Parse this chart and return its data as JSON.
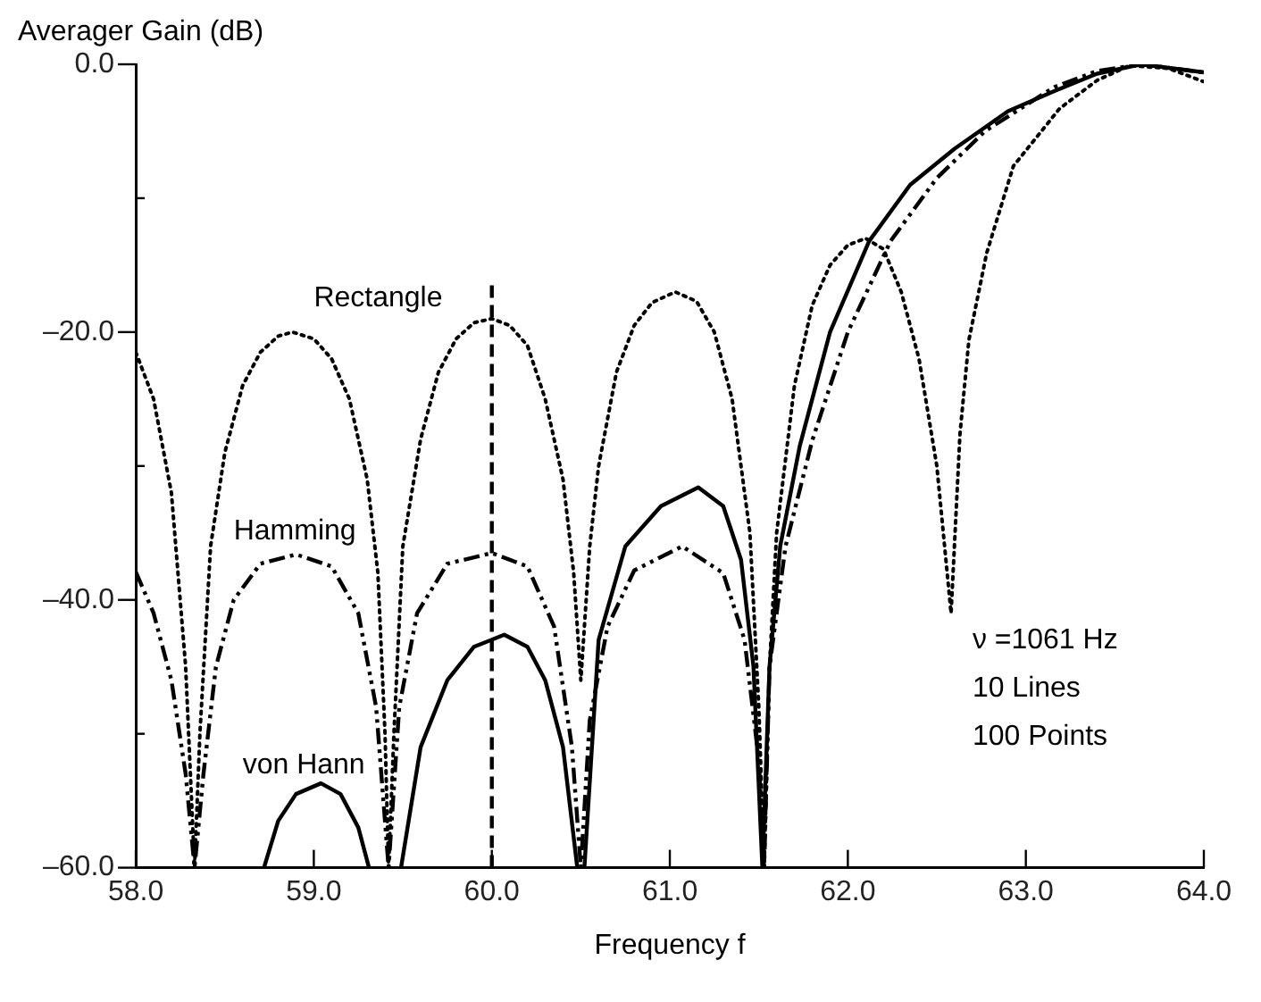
{
  "chart_data": {
    "type": "line",
    "xlabel": "Frequency f",
    "ylabel": "Averager Gain (dB)",
    "xlim": [
      58,
      64
    ],
    "ylim": [
      -60,
      0
    ],
    "xticks": [
      {
        "value": 58,
        "label": "58.0"
      },
      {
        "value": 59,
        "label": "59.0"
      },
      {
        "value": 60,
        "label": "60.0"
      },
      {
        "value": 61,
        "label": "61.0"
      },
      {
        "value": 62,
        "label": "62.0"
      },
      {
        "value": 63,
        "label": "63.0"
      },
      {
        "value": 64,
        "label": "64.0"
      }
    ],
    "yticks": [
      {
        "value": -60,
        "label": "–60.0"
      },
      {
        "value": -50,
        "label": null
      },
      {
        "value": -40,
        "label": "–40.0"
      },
      {
        "value": -30,
        "label": null
      },
      {
        "value": -20,
        "label": "–20.0"
      },
      {
        "value": -10,
        "label": null
      },
      {
        "value": 0,
        "label": "0.0"
      }
    ],
    "grid": false,
    "legend": false,
    "marker": "none",
    "series": [
      {
        "name": "Rectangle",
        "color": "#000000",
        "line_style": "dotted",
        "x": [
          58.0,
          58.1,
          58.2,
          58.28,
          58.33,
          58.36,
          58.42,
          58.5,
          58.6,
          58.7,
          58.8,
          58.88,
          59.0,
          59.1,
          59.2,
          59.3,
          59.36,
          59.4,
          59.42,
          59.45,
          59.5,
          59.6,
          59.7,
          59.8,
          59.9,
          60.0,
          60.1,
          60.2,
          60.3,
          60.4,
          60.46,
          60.5,
          60.55,
          60.6,
          60.7,
          60.8,
          60.9,
          61.03,
          61.15,
          61.25,
          61.35,
          61.45,
          61.5,
          61.53,
          61.56,
          61.6,
          61.7,
          61.8,
          61.9,
          62.0,
          62.1,
          62.2,
          62.3,
          62.4,
          62.5,
          62.58,
          62.63,
          62.68,
          62.78,
          62.93,
          63.19,
          63.4,
          63.58,
          63.8,
          64.0
        ],
        "values": [
          -21.5,
          -25,
          -32,
          -45,
          -60,
          -50,
          -36,
          -29,
          -24,
          -21.5,
          -20.3,
          -20,
          -20.5,
          -22,
          -25,
          -31,
          -38,
          -50,
          -60,
          -50,
          -36,
          -28,
          -23,
          -20.5,
          -19.3,
          -19,
          -19.5,
          -21,
          -25,
          -31,
          -38,
          -46,
          -36,
          -30,
          -23,
          -19.5,
          -17.8,
          -17,
          -17.7,
          -20,
          -25,
          -35,
          -48,
          -60,
          -45,
          -35,
          -24,
          -18,
          -15,
          -13.5,
          -13,
          -13.8,
          -17,
          -22,
          -30,
          -41,
          -27.6,
          -20.6,
          -14.1,
          -7.6,
          -3.3,
          -1.2,
          -0.1,
          -0.3,
          -1.3
        ]
      },
      {
        "name": "Hamming",
        "color": "#000000",
        "line_style": "dashed",
        "x": [
          58.0,
          58.1,
          58.2,
          58.28,
          58.33,
          58.38,
          58.45,
          58.55,
          58.7,
          58.9,
          59.1,
          59.25,
          59.35,
          59.42,
          59.48,
          59.58,
          59.75,
          60.0,
          60.2,
          60.35,
          60.45,
          60.5,
          60.55,
          60.65,
          60.8,
          61.07,
          61.3,
          61.42,
          61.5,
          61.53,
          61.56,
          61.65,
          61.8,
          62.0,
          62.24,
          62.5,
          62.77,
          63.16,
          63.4,
          63.65,
          64.0
        ],
        "values": [
          -37.9,
          -41,
          -46,
          -53,
          -60,
          -53,
          -45,
          -40,
          -37.3,
          -36.6,
          -37.5,
          -41,
          -48,
          -60,
          -48,
          -41,
          -37.3,
          -36.5,
          -37.5,
          -42,
          -51,
          -60,
          -49,
          -42,
          -37.8,
          -36,
          -38,
          -43,
          -52,
          -60,
          -45,
          -36,
          -28.1,
          -20,
          -13.2,
          -8.5,
          -5,
          -1.7,
          -0.5,
          0,
          -0.6
        ]
      },
      {
        "name": "von Hann",
        "color": "#000000",
        "line_style": "solid",
        "x": [
          58.72,
          58.8,
          58.9,
          59.04,
          59.15,
          59.25,
          59.31,
          59.4,
          59.49,
          59.6,
          59.75,
          59.9,
          60.07,
          60.2,
          60.3,
          60.4,
          60.48,
          60.5,
          60.52,
          60.6,
          60.75,
          60.95,
          61.16,
          61.3,
          61.4,
          61.47,
          61.52,
          61.56,
          61.62,
          61.73,
          61.9,
          62.12,
          62.35,
          62.6,
          62.9,
          63.16,
          63.4,
          63.65,
          64.0
        ],
        "values": [
          -60,
          -56.5,
          -54.5,
          -53.7,
          -54.5,
          -57,
          -60,
          null,
          -60,
          -51,
          -46,
          -43.5,
          -42.6,
          -43.5,
          -46,
          -51,
          -60,
          null,
          -60,
          -43,
          -36,
          -33,
          -31.6,
          -33,
          -37,
          -45,
          -60,
          -45,
          -36,
          -28.5,
          -20,
          -13.2,
          -9,
          -6.3,
          -3.5,
          -2,
          -0.7,
          0,
          -0.6
        ]
      }
    ],
    "ref_lines": [
      {
        "axis": "x",
        "value": 60,
        "color": "#000000",
        "line_style": "dashed"
      }
    ],
    "annotations": [
      "ν =1061 Hz",
      "10 Lines",
      "100 Points"
    ]
  }
}
